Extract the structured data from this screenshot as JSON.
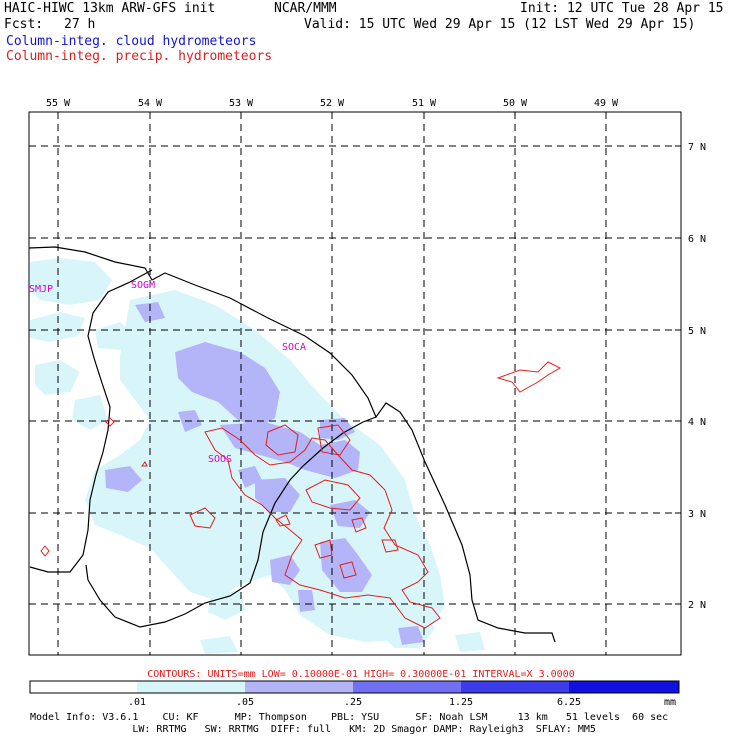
{
  "header": {
    "model": "HAIC-HIWC 13km ARW-GFS init",
    "org": "NCAR/MMM",
    "init": "Init: 12 UTC Tue 28 Apr 15",
    "fcst_label": "Fcst:",
    "fcst_value": "27 h",
    "valid": "Valid: 15 UTC Wed 29 Apr 15 (12 LST Wed 29 Apr 15)",
    "field_cloud": "Column-integ. cloud hydrometeors",
    "field_precip": "Column-integ. precip. hydrometeors"
  },
  "map": {
    "lon_labels": [
      "55 W",
      "54 W",
      "53 W",
      "52 W",
      "51 W",
      "50 W",
      "49 W"
    ],
    "lat_labels": [
      "7 N",
      "6 N",
      "5 N",
      "4 N",
      "3 N",
      "2 N"
    ],
    "stations": [
      "SMJP",
      "SOGM",
      "SOCA",
      "SOOS"
    ]
  },
  "contour_info": "CONTOURS:  UNITS=mm  LOW= 0.10000E-01  HIGH= 0.30000E-01  INTERVAL=X  3.0000",
  "colorbar": {
    "labels": [
      ".01",
      ".05",
      ".25",
      "1.25",
      "6.25",
      "mm"
    ],
    "colors": [
      "#ffffff",
      "#d8f6fa",
      "#b4b4f8",
      "#7070f0",
      "#3c3cea",
      "#1010e0"
    ]
  },
  "model_info": {
    "line1": "Model Info: V3.6.1    CU: KF      MP: Thompson    PBL: YSU      SF: Noah LSM     13 km   51 levels  60 sec",
    "line2": "                 LW: RRTMG   SW: RRTMG  DIFF: full   KM: 2D Smagor DAMP: Rayleigh3  SFLAY: MM5"
  },
  "colors": {
    "cloud_title": "#1414d2",
    "precip_title": "#e01e1e",
    "station": "#d400d4",
    "contour": "#e01e1e"
  }
}
